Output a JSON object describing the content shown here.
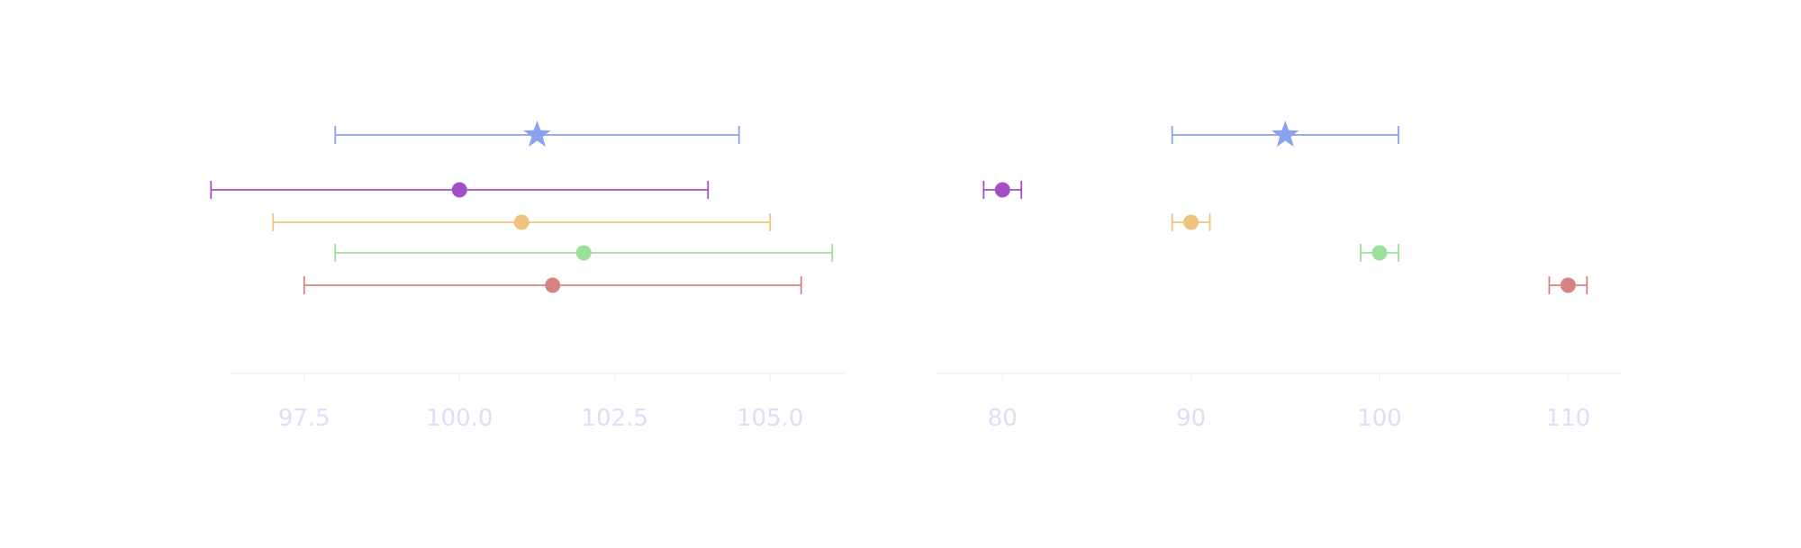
{
  "chart_data": [
    {
      "type": "scatter",
      "title": "",
      "xlabel": "",
      "ylabel": "",
      "xlim": [
        96.3,
        106.2
      ],
      "xticks": [
        97.5,
        100.0,
        102.5,
        105.0
      ],
      "xtick_labels": [
        "97.5",
        "100.0",
        "102.5",
        "105.0"
      ],
      "grid": false,
      "legend": "none",
      "series": [
        {
          "marker": "star",
          "color": "#8aa3f0",
          "value": 101.25,
          "lower": 98.0,
          "upper": 104.5
        },
        {
          "marker": "circle",
          "color": "#a44fc6",
          "value": 100.0,
          "lower": 96.0,
          "upper": 104.0
        },
        {
          "marker": "circle",
          "color": "#f0c47e",
          "value": 101.0,
          "lower": 97.0,
          "upper": 105.0
        },
        {
          "marker": "circle",
          "color": "#9be09b",
          "value": 102.0,
          "lower": 98.0,
          "upper": 106.0
        },
        {
          "marker": "circle",
          "color": "#d88383",
          "value": 101.5,
          "lower": 97.5,
          "upper": 105.5
        }
      ]
    },
    {
      "type": "scatter",
      "title": "",
      "xlabel": "",
      "ylabel": "",
      "xlim": [
        76.5,
        112.8
      ],
      "xticks": [
        80,
        90,
        100,
        110
      ],
      "xtick_labels": [
        "80",
        "90",
        "100",
        "110"
      ],
      "grid": false,
      "legend": "none",
      "series": [
        {
          "marker": "star",
          "color": "#8aa3f0",
          "value": 95.0,
          "lower": 89.0,
          "upper": 101.0
        },
        {
          "marker": "circle",
          "color": "#a44fc6",
          "value": 80.0,
          "lower": 79.0,
          "upper": 81.0
        },
        {
          "marker": "circle",
          "color": "#f0c47e",
          "value": 90.0,
          "lower": 89.0,
          "upper": 91.0
        },
        {
          "marker": "circle",
          "color": "#9be09b",
          "value": 100.0,
          "lower": 99.0,
          "upper": 101.0
        },
        {
          "marker": "circle",
          "color": "#d88383",
          "value": 110.0,
          "lower": 109.0,
          "upper": 111.0
        }
      ]
    }
  ]
}
